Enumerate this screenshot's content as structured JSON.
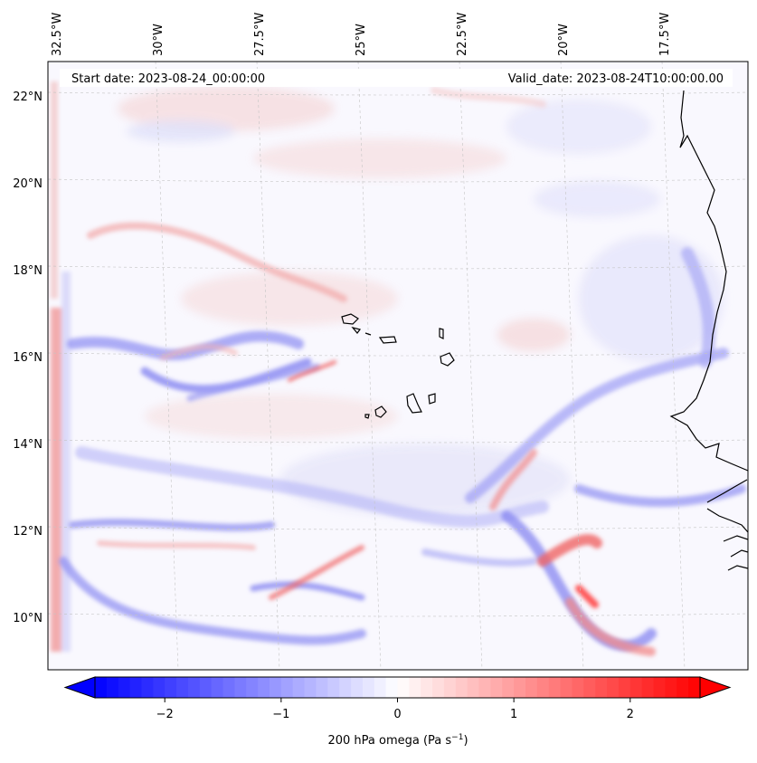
{
  "map": {
    "start_label": "Start date: 2023-08-24_00:00:00",
    "valid_label": "Valid_date: 2023-08-24T10:00:00.00",
    "lon_labels": [
      "32.5°W",
      "30°W",
      "27.5°W",
      "25°W",
      "22.5°W",
      "20°W",
      "17.5°W"
    ],
    "lat_labels": [
      "22°N",
      "20°N",
      "18°N",
      "16°N",
      "14°N",
      "12°N",
      "10°N"
    ],
    "gridlines": true
  },
  "colorbar": {
    "label": "200 hPa omega (Pa s",
    "label_exp": "−1",
    "label_close": ")",
    "ticks": [
      "−2",
      "−1",
      "0",
      "1",
      "2"
    ],
    "range": [
      -2.6,
      2.6
    ],
    "colormap": "bwr",
    "colors": {
      "low": "#0000ff",
      "mid": "#ffffff",
      "high": "#ff0000"
    },
    "extend": "both"
  }
}
